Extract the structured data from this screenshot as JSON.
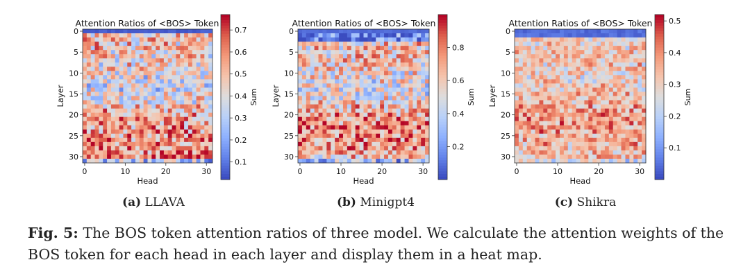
{
  "chart_data": [
    {
      "type": "heatmap",
      "id": "llava",
      "title": "Attention Ratios of <BOS> Token",
      "xlabel": "Head",
      "ylabel": "Layer",
      "colorbar_label": "Sum",
      "x_ticks": [
        0,
        10,
        20,
        30
      ],
      "y_ticks": [
        0,
        5,
        10,
        15,
        20,
        25,
        30
      ],
      "colorbar_ticks": [
        "0.1",
        "0.2",
        "0.3",
        "0.4",
        "0.5",
        "0.6",
        "0.7"
      ],
      "vrange": [
        0.02,
        0.77
      ],
      "rows": 32,
      "cols": 32,
      "row_profile": [
        0.03,
        0.5,
        0.5,
        0.48,
        0.47,
        0.46,
        0.45,
        0.44,
        0.43,
        0.42,
        0.4,
        0.38,
        0.37,
        0.36,
        0.36,
        0.37,
        0.4,
        0.44,
        0.48,
        0.5,
        0.52,
        0.54,
        0.55,
        0.55,
        0.56,
        0.57,
        0.57,
        0.58,
        0.58,
        0.6,
        0.62,
        0.3
      ],
      "cmap": "coolwarm",
      "subcaption_label": "(a)",
      "subcaption_name": "LLAVA"
    },
    {
      "type": "heatmap",
      "id": "minigpt4",
      "title": "Attention Ratios of <BOS> Token",
      "xlabel": "Head",
      "ylabel": "Layer",
      "colorbar_label": "Sum",
      "x_ticks": [
        0,
        10,
        20,
        30
      ],
      "y_ticks": [
        0,
        5,
        10,
        15,
        20,
        25,
        30
      ],
      "colorbar_ticks": [
        "0.2",
        "0.4",
        "0.6",
        "0.8"
      ],
      "vrange": [
        0.0,
        1.0
      ],
      "rows": 32,
      "cols": 32,
      "row_profile": [
        0.05,
        0.1,
        0.1,
        0.6,
        0.6,
        0.62,
        0.62,
        0.62,
        0.6,
        0.6,
        0.55,
        0.52,
        0.5,
        0.48,
        0.5,
        0.52,
        0.55,
        0.6,
        0.62,
        0.65,
        0.7,
        0.72,
        0.75,
        0.75,
        0.76,
        0.76,
        0.75,
        0.74,
        0.72,
        0.7,
        0.6,
        0.3
      ],
      "cmap": "coolwarm",
      "subcaption_label": "(b)",
      "subcaption_name": "Minigpt4"
    },
    {
      "type": "heatmap",
      "id": "shikra",
      "title": "Attention Ratios of <BOS> Token",
      "xlabel": "Head",
      "ylabel": "Layer",
      "colorbar_label": "Sum",
      "x_ticks": [
        0,
        10,
        20,
        30
      ],
      "y_ticks": [
        0,
        5,
        10,
        15,
        20,
        25,
        30
      ],
      "colorbar_ticks": [
        "0.1",
        "0.2",
        "0.3",
        "0.4",
        "0.5"
      ],
      "vrange": [
        0.0,
        0.52
      ],
      "rows": 32,
      "cols": 32,
      "row_profile": [
        0.02,
        0.02,
        0.3,
        0.3,
        0.31,
        0.32,
        0.33,
        0.33,
        0.32,
        0.31,
        0.3,
        0.3,
        0.3,
        0.31,
        0.32,
        0.33,
        0.34,
        0.35,
        0.36,
        0.37,
        0.37,
        0.37,
        0.37,
        0.37,
        0.37,
        0.36,
        0.36,
        0.35,
        0.35,
        0.34,
        0.34,
        0.25
      ],
      "cmap": "coolwarm",
      "subcaption_label": "(c)",
      "subcaption_name": "Shikra"
    }
  ],
  "caption": {
    "label": "Fig. 5:",
    "text": "The BOS token attention ratios of three model. We calculate the attention weights of the BOS token for each head in each layer and display them in a heat map."
  }
}
